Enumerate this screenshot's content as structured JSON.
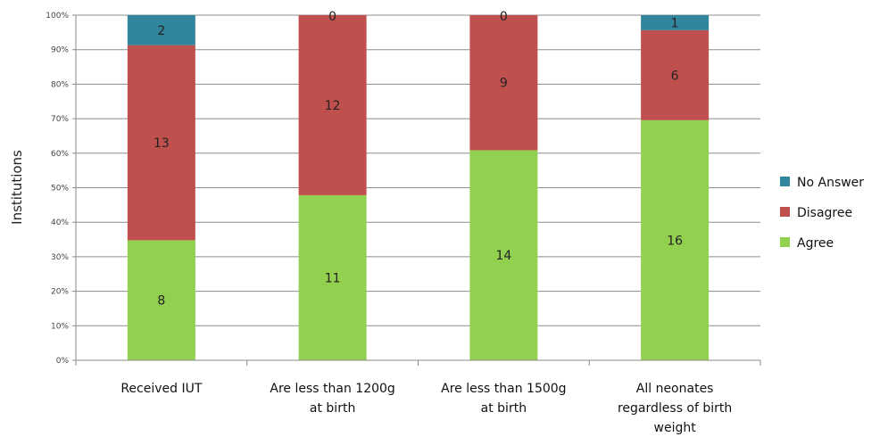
{
  "chart_data": {
    "type": "bar",
    "stacked": true,
    "percent_stacked": true,
    "title": "",
    "xlabel": "",
    "ylabel": "Institutions",
    "ylim": [
      0,
      100
    ],
    "yticks": [
      "0%",
      "10%",
      "20%",
      "30%",
      "40%",
      "50%",
      "60%",
      "70%",
      "80%",
      "90%",
      "100%"
    ],
    "categories": [
      [
        "Received IUT"
      ],
      [
        "Are less than 1200g",
        "at birth"
      ],
      [
        "Are less than 1500g",
        "at birth"
      ],
      [
        "All neonates",
        "regardless of birth",
        "weight"
      ]
    ],
    "series": [
      {
        "name": "Agree",
        "color": "#92d050",
        "values": [
          8,
          11,
          14,
          16
        ]
      },
      {
        "name": "Disagree",
        "color": "#c0504d",
        "values": [
          13,
          12,
          9,
          6
        ]
      },
      {
        "name": "No Answer",
        "color": "#31859c",
        "values": [
          2,
          0,
          0,
          1
        ]
      }
    ],
    "legend_order": [
      "No Answer",
      "Disagree",
      "Agree"
    ],
    "legend_position": "right",
    "grid": true
  }
}
